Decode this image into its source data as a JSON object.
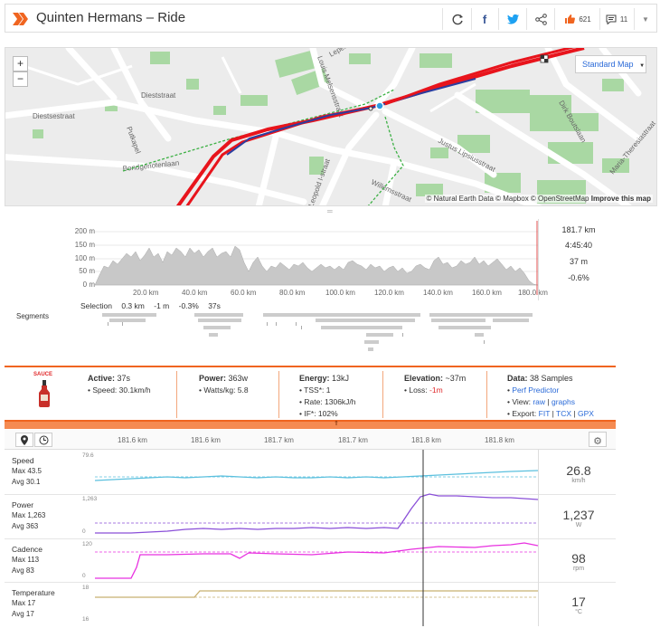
{
  "header": {
    "title": "Quinten Hermans – Ride",
    "kudos_count": "621",
    "comments_count": "11"
  },
  "map": {
    "zoom_in": "+",
    "zoom_out": "−",
    "map_type": "Standard Map",
    "attribution": "© Natural Earth Data © Mapbox © OpenStreetMap",
    "attribution_bold": "Improve this map",
    "streets": [
      "Dieststraat",
      "Diestsestraat",
      "Putkapel",
      "Bondgenotenlaan",
      "Justus Lipsiusstraat",
      "Willemsstraat",
      "Maria-Theresiastraat",
      "Leopold I-straat",
      "Lepel",
      "Dirk Boutslaan",
      "Kapucijnenvoer",
      "Louis Melsensstraat"
    ]
  },
  "elevation": {
    "y_ticks": [
      "200 m",
      "150 m",
      "100 m",
      "50 m",
      "0 m"
    ],
    "x_ticks": [
      "20.0 km",
      "40.0 km",
      "60.0 km",
      "80.0 km",
      "100.0 km",
      "120.0 km",
      "140.0 km",
      "160.0 km",
      "180.0 km"
    ],
    "stats": [
      "181.7 km",
      "4:45:40",
      "37 m",
      "-0.6%"
    ],
    "selection_label": "Selection",
    "selection_values": [
      "0.3 km",
      "-1 m",
      "-0.3%",
      "37s"
    ],
    "segments_label": "Segments"
  },
  "info": {
    "sauce_label": "SAUCE",
    "active_label": "Active:",
    "active_value": "37s",
    "speed_line": "• Speed: 30.1km/h",
    "power_label": "Power:",
    "power_value": "363w",
    "wkg_line": "• Watts/kg: 5.8",
    "energy_label": "Energy:",
    "energy_value": "13kJ",
    "tss_line": "• TSS*: 1",
    "rate_line": "• Rate: 1306kJ/h",
    "if_line": "• IF*: 102%",
    "elevation_label": "Elevation:",
    "elevation_value": "~37m",
    "loss_label": "• Loss: ",
    "loss_value": "-1m",
    "data_label": "Data:",
    "data_value": "38 Samples",
    "perf_bullet": "• ",
    "perf_link": "Perf Predictor",
    "view_label": "• View: ",
    "view_raw": "raw",
    "view_sep": " | ",
    "view_graphs": "graphs",
    "export_label": "• Export: ",
    "export_fit": "FIT",
    "export_tcx": "TCX",
    "export_gpx": "GPX"
  },
  "timeline": {
    "x_ticks": [
      "181.6 km",
      "181.6 km",
      "181.7 km",
      "181.7 km",
      "181.8 km",
      "181.8 km"
    ],
    "rows": [
      {
        "label": "Speed",
        "max": "Max 43.5",
        "avg": "Avg 30.1",
        "value": "26.8",
        "unit": "km/h",
        "y_top": "79.6",
        "y_bot": ""
      },
      {
        "label": "Power",
        "max": "Max 1,263",
        "avg": "Avg 363",
        "value": "1,237",
        "unit": "W",
        "y_top": "1,263",
        "y_bot": "0"
      },
      {
        "label": "Cadence",
        "max": "Max 113",
        "avg": "Avg 83",
        "value": "98",
        "unit": "rpm",
        "y_top": "120",
        "y_bot": "0"
      },
      {
        "label": "Temperature",
        "max": "Max 17",
        "avg": "Avg 17",
        "value": "17",
        "unit": "°C",
        "y_top": "18",
        "y_bot": "16"
      }
    ]
  },
  "colors": {
    "accent": "#f06520",
    "speed": "#5bc0de",
    "power": "#8a4fd8",
    "cadence": "#e830e0",
    "temperature": "#c8b070",
    "route": "#e8141c",
    "route_alt": "#2b3ea0"
  }
}
